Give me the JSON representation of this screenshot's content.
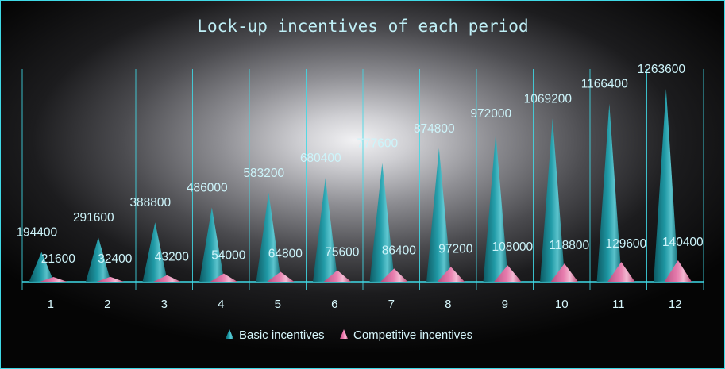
{
  "chart_data": {
    "type": "bar",
    "title": "Lock-up incentives of each period",
    "categories": [
      "1",
      "2",
      "3",
      "4",
      "5",
      "6",
      "7",
      "8",
      "9",
      "10",
      "11",
      "12"
    ],
    "series": [
      {
        "name": "Basic incentives",
        "color": "#1fa3b0",
        "values": [
          194400,
          291600,
          388800,
          486000,
          583200,
          680400,
          777600,
          874800,
          972000,
          1069200,
          1166400,
          1263600
        ]
      },
      {
        "name": "Competitive incentives",
        "color": "#f07aae",
        "values": [
          21600,
          32400,
          43200,
          54000,
          64800,
          75600,
          86400,
          97200,
          108000,
          118800,
          129600,
          140400
        ]
      }
    ],
    "ylim": [
      0,
      1300000
    ],
    "shape": "cone",
    "data_labels": true,
    "legend": "bottom",
    "grid": "vertical category separators",
    "accent_color": "#3fd9e6"
  }
}
